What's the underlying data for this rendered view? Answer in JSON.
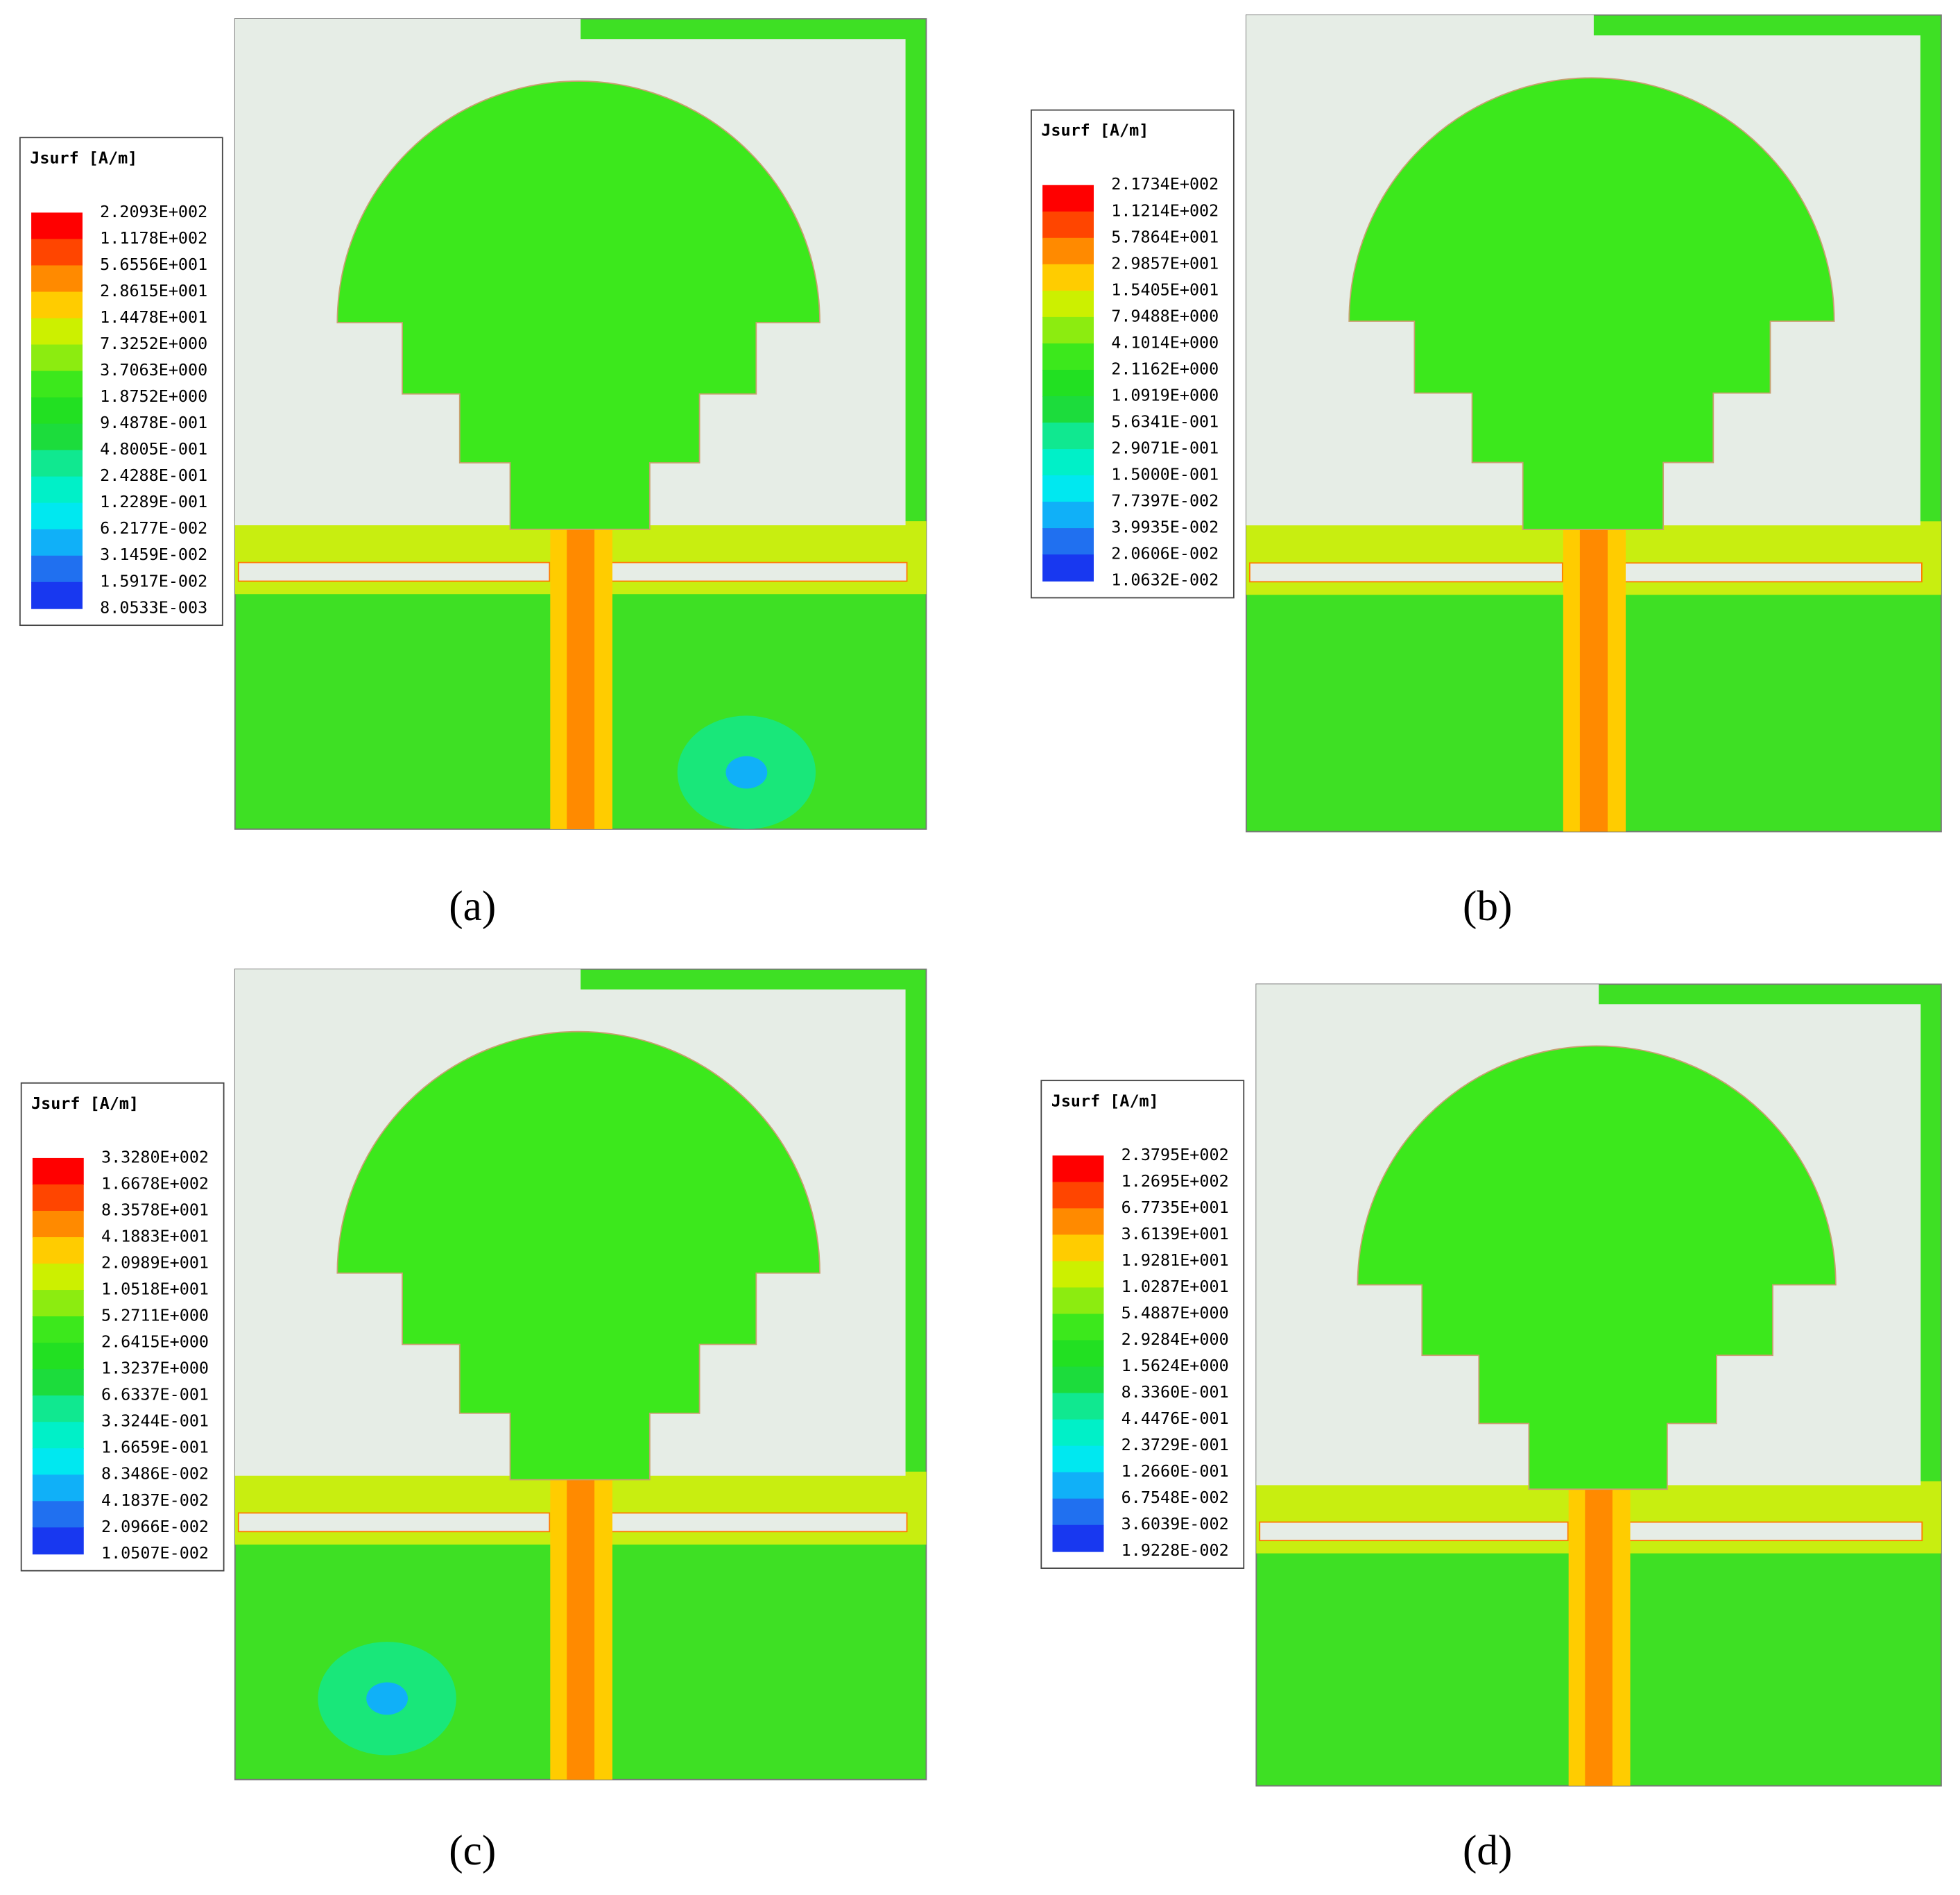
{
  "legend_colors": [
    "#ff0000",
    "#ff4500",
    "#ff8a00",
    "#ffcc00",
    "#ccf000",
    "#8cec10",
    "#3ce81c",
    "#22e022",
    "#1cdc3c",
    "#10e890",
    "#00f0c8",
    "#00e8f0",
    "#10b0f8",
    "#2070f0",
    "#1838f0"
  ],
  "panels": [
    {
      "legend_title": "Jsurf [A/m]",
      "caption": "(a)",
      "legend_labels": [
        "2.2093E+002",
        "1.1178E+002",
        "5.6556E+001",
        "2.8615E+001",
        "1.4478E+001",
        "7.3252E+000",
        "3.7063E+000",
        "1.8752E+000",
        "9.4878E-001",
        "4.8005E-001",
        "2.4288E-001",
        "1.2289E-001",
        "6.2177E-002",
        "3.1459E-002",
        "1.5917E-002",
        "8.0533E-003"
      ]
    },
    {
      "legend_title": "Jsurf [A/m]",
      "caption": "(b)",
      "legend_labels": [
        "2.1734E+002",
        "1.1214E+002",
        "5.7864E+001",
        "2.9857E+001",
        "1.5405E+001",
        "7.9488E+000",
        "4.1014E+000",
        "2.1162E+000",
        "1.0919E+000",
        "5.6341E-001",
        "2.9071E-001",
        "1.5000E-001",
        "7.7397E-002",
        "3.9935E-002",
        "2.0606E-002",
        "1.0632E-002"
      ]
    },
    {
      "legend_title": "Jsurf [A/m]",
      "caption": "(c)",
      "legend_labels": [
        "3.3280E+002",
        "1.6678E+002",
        "8.3578E+001",
        "4.1883E+001",
        "2.0989E+001",
        "1.0518E+001",
        "5.2711E+000",
        "2.6415E+000",
        "1.3237E+000",
        "6.6337E-001",
        "3.3244E-001",
        "1.6659E-001",
        "8.3486E-002",
        "4.1837E-002",
        "2.0966E-002",
        "1.0507E-002"
      ]
    },
    {
      "legend_title": "Jsurf [A/m]",
      "caption": "(d)",
      "legend_labels": [
        "2.3795E+002",
        "1.2695E+002",
        "6.7735E+001",
        "3.6139E+001",
        "1.9281E+001",
        "1.0287E+001",
        "5.4887E+000",
        "2.9284E+000",
        "1.5624E+000",
        "8.3360E-001",
        "4.4476E-001",
        "2.3729E-001",
        "1.2660E-001",
        "6.7548E-002",
        "3.6039E-002",
        "1.9228E-002"
      ]
    }
  ]
}
